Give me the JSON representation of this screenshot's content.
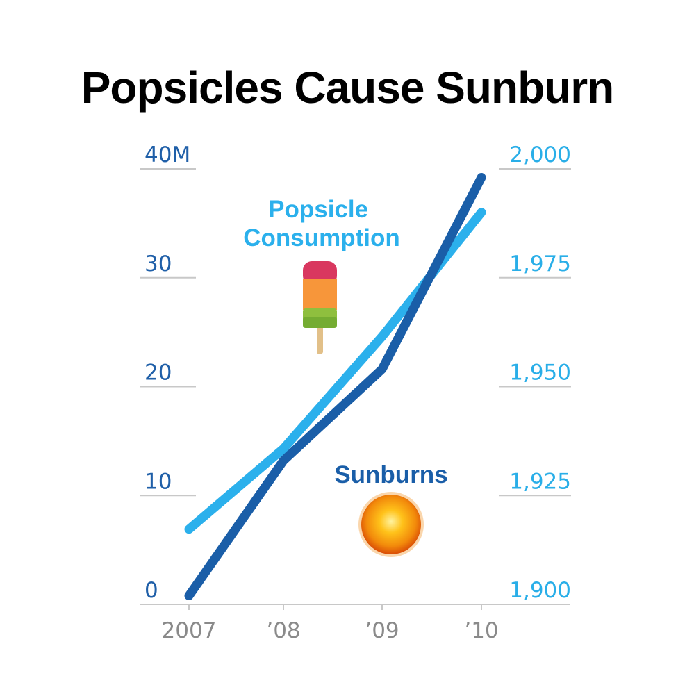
{
  "chart_data": {
    "type": "line",
    "title": "Popsicles Cause Sunburn",
    "categories": [
      "2007",
      "’08",
      "’09",
      "’10"
    ],
    "y_left": {
      "ticks": [
        "0",
        "10",
        "20",
        "30",
        "40M"
      ],
      "tick_values": [
        0,
        10,
        20,
        30,
        40
      ],
      "range": [
        0,
        40
      ],
      "unit": "M"
    },
    "y_right": {
      "ticks": [
        "1,900",
        "1,925",
        "1,950",
        "1,975",
        "2,000"
      ],
      "tick_values": [
        1900,
        1925,
        1950,
        1975,
        2000
      ],
      "range": [
        1900,
        2000
      ]
    },
    "series": [
      {
        "name": "Popsicle Consumption",
        "label_lines": [
          "Popsicle",
          "Consumption"
        ],
        "axis": "left",
        "color": "#2bb0ec",
        "values": [
          6.9,
          14.3,
          24.6,
          36.0
        ]
      },
      {
        "name": "Sunburns",
        "label_lines": [
          "Sunburns"
        ],
        "axis": "right",
        "color": "#1a5ea8",
        "values": [
          1902,
          1933,
          1954,
          1998
        ]
      }
    ],
    "icons": [
      "popsicle-icon",
      "sun-icon"
    ],
    "grid": true
  }
}
